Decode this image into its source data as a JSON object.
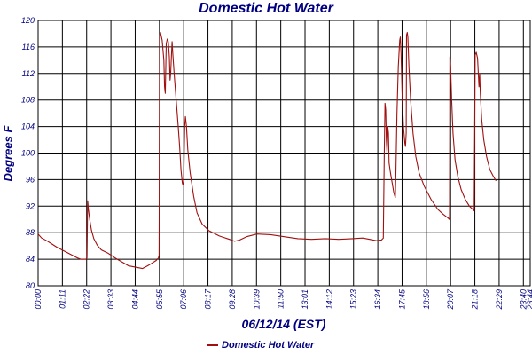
{
  "chart_data": {
    "type": "line",
    "title": "Domestic Hot Water",
    "xlabel": "06/12/14 (EST)",
    "ylabel": "Degrees F",
    "ylim": [
      80,
      120
    ],
    "yticks": [
      80,
      84,
      88,
      92,
      96,
      100,
      104,
      108,
      112,
      116,
      120
    ],
    "x_unit": "minutes since 00:00",
    "xlim": [
      0,
      1440
    ],
    "xtick_minutes": [
      0,
      71,
      142,
      213,
      284,
      355,
      426,
      497,
      568,
      639,
      710,
      781,
      852,
      923,
      994,
      1065,
      1136,
      1207,
      1278,
      1349,
      1420,
      1440
    ],
    "xtick_labels": [
      "00:00",
      "01:11",
      "02:22",
      "03:33",
      "04:44",
      "05:55",
      "07:06",
      "08:17",
      "09:28",
      "10:39",
      "11:50",
      "13:01",
      "14:12",
      "15:23",
      "16:34",
      "17:45",
      "18:56",
      "20:07",
      "21:18",
      "22:29",
      "23:40",
      "23:44"
    ],
    "grid": true,
    "legend_position": "bottom-center",
    "colors": {
      "series": "#a01010",
      "axis_text": "#000080",
      "grid": "#000000",
      "title": "#000080"
    },
    "series": [
      {
        "name": "Domestic Hot Water",
        "points": [
          [
            0,
            87.8
          ],
          [
            10,
            87.2
          ],
          [
            25,
            86.8
          ],
          [
            40,
            86.3
          ],
          [
            55,
            85.8
          ],
          [
            70,
            85.4
          ],
          [
            85,
            85.0
          ],
          [
            100,
            84.6
          ],
          [
            115,
            84.2
          ],
          [
            125,
            84.0
          ],
          [
            140,
            84.0
          ],
          [
            143,
            84.2
          ],
          [
            145,
            92.8
          ],
          [
            147,
            91.5
          ],
          [
            151,
            90.0
          ],
          [
            156,
            88.4
          ],
          [
            163,
            87.1
          ],
          [
            173,
            86.1
          ],
          [
            185,
            85.4
          ],
          [
            205,
            84.9
          ],
          [
            225,
            84.2
          ],
          [
            245,
            83.6
          ],
          [
            265,
            83.0
          ],
          [
            285,
            82.8
          ],
          [
            305,
            82.6
          ],
          [
            320,
            83.0
          ],
          [
            330,
            83.3
          ],
          [
            345,
            83.8
          ],
          [
            352,
            84.2
          ],
          [
            354,
            84.6
          ],
          [
            356,
            117.8
          ],
          [
            358,
            118.2
          ],
          [
            363,
            117.0
          ],
          [
            368,
            114.0
          ],
          [
            370,
            110.0
          ],
          [
            372,
            109.0
          ],
          [
            375,
            116.5
          ],
          [
            378,
            117.2
          ],
          [
            381,
            116.8
          ],
          [
            384,
            114.5
          ],
          [
            386,
            111.0
          ],
          [
            388,
            112.0
          ],
          [
            390,
            114.5
          ],
          [
            392,
            116.8
          ],
          [
            394,
            115.0
          ],
          [
            398,
            112.0
          ],
          [
            404,
            108.0
          ],
          [
            410,
            104.0
          ],
          [
            414,
            101.0
          ],
          [
            418,
            97.5
          ],
          [
            422,
            95.5
          ],
          [
            424,
            95.2
          ],
          [
            426,
            96.0
          ],
          [
            429,
            104.0
          ],
          [
            431,
            105.5
          ],
          [
            434,
            104.0
          ],
          [
            438,
            100.5
          ],
          [
            445,
            97.0
          ],
          [
            455,
            93.5
          ],
          [
            465,
            91.0
          ],
          [
            480,
            89.3
          ],
          [
            500,
            88.3
          ],
          [
            530,
            87.5
          ],
          [
            560,
            87.0
          ],
          [
            575,
            86.7
          ],
          [
            590,
            86.9
          ],
          [
            610,
            87.4
          ],
          [
            640,
            87.8
          ],
          [
            680,
            87.7
          ],
          [
            720,
            87.4
          ],
          [
            760,
            87.1
          ],
          [
            800,
            87.0
          ],
          [
            840,
            87.1
          ],
          [
            880,
            87.0
          ],
          [
            920,
            87.1
          ],
          [
            950,
            87.2
          ],
          [
            970,
            87.0
          ],
          [
            990,
            86.8
          ],
          [
            1005,
            86.9
          ],
          [
            1010,
            87.2
          ],
          [
            1013,
            100.0
          ],
          [
            1015,
            107.5
          ],
          [
            1017,
            106.5
          ],
          [
            1019,
            102.0
          ],
          [
            1021,
            100.0
          ],
          [
            1023,
            104.0
          ],
          [
            1025,
            103.0
          ],
          [
            1027,
            98.5
          ],
          [
            1031,
            97.0
          ],
          [
            1036,
            95.5
          ],
          [
            1041,
            94.0
          ],
          [
            1045,
            93.3
          ],
          [
            1047,
            97.0
          ],
          [
            1050,
            106.0
          ],
          [
            1054,
            113.0
          ],
          [
            1058,
            117.0
          ],
          [
            1060,
            117.5
          ],
          [
            1062,
            115.0
          ],
          [
            1065,
            109.0
          ],
          [
            1069,
            104.0
          ],
          [
            1073,
            101.5
          ],
          [
            1075,
            101.0
          ],
          [
            1077,
            103.0
          ],
          [
            1078,
            117.8
          ],
          [
            1080,
            118.2
          ],
          [
            1082,
            117.5
          ],
          [
            1085,
            113.0
          ],
          [
            1090,
            108.0
          ],
          [
            1097,
            103.0
          ],
          [
            1105,
            99.5
          ],
          [
            1115,
            97.0
          ],
          [
            1130,
            95.0
          ],
          [
            1150,
            93.0
          ],
          [
            1170,
            91.5
          ],
          [
            1185,
            90.8
          ],
          [
            1200,
            90.2
          ],
          [
            1204,
            90.0
          ],
          [
            1205,
            114.5
          ],
          [
            1207,
            113.0
          ],
          [
            1210,
            108.0
          ],
          [
            1214,
            103.0
          ],
          [
            1220,
            99.0
          ],
          [
            1228,
            96.5
          ],
          [
            1238,
            94.5
          ],
          [
            1250,
            93.0
          ],
          [
            1262,
            92.0
          ],
          [
            1272,
            91.5
          ],
          [
            1276,
            91.3
          ],
          [
            1279,
            114.8
          ],
          [
            1282,
            115.2
          ],
          [
            1286,
            114.3
          ],
          [
            1290,
            110.0
          ],
          [
            1292,
            112.0
          ],
          [
            1294,
            109.0
          ],
          [
            1298,
            105.0
          ],
          [
            1304,
            102.0
          ],
          [
            1312,
            99.5
          ],
          [
            1322,
            97.5
          ],
          [
            1332,
            96.5
          ],
          [
            1340,
            95.8
          ]
        ]
      }
    ]
  }
}
